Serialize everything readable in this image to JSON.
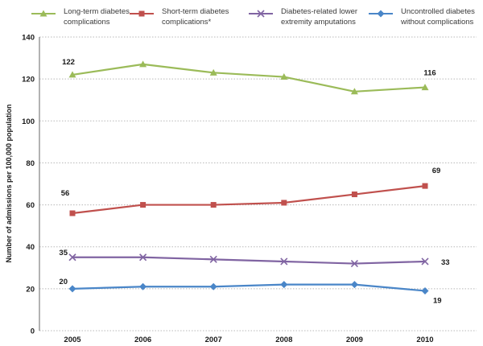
{
  "legend": {
    "items": [
      {
        "line1": "Long-term diabetes",
        "line2": "complications"
      },
      {
        "line1": "Short-term diabetes",
        "line2": "complications*"
      },
      {
        "line1": "Diabetes-related lower",
        "line2": "extremity amputations"
      },
      {
        "line1": "Uncontrolled diabetes",
        "line2": "without complications"
      }
    ]
  },
  "chart_data": {
    "type": "line",
    "title": "",
    "xlabel": "",
    "ylabel": "Number of admissions per 100,000 population",
    "categories": [
      "2005",
      "2006",
      "2007",
      "2008",
      "2009",
      "2010"
    ],
    "series": [
      {
        "name": "Long-term diabetes complications",
        "marker": "triangle",
        "color": "#9BBB59",
        "values": [
          122,
          127,
          123,
          121,
          114,
          116
        ],
        "first_label": "122",
        "last_label": "116"
      },
      {
        "name": "Short-term diabetes complications*",
        "marker": "square",
        "color": "#C0504D",
        "values": [
          56,
          60,
          60,
          61,
          65,
          69
        ],
        "first_label": "56",
        "last_label": "69"
      },
      {
        "name": "Diabetes-related lower extremity amputations",
        "marker": "x-cross",
        "color": "#8064A2",
        "values": [
          35,
          35,
          34,
          33,
          32,
          33
        ],
        "first_label": "35",
        "last_label": "33"
      },
      {
        "name": "Uncontrolled diabetes without complications",
        "marker": "diamond",
        "color": "#4A86C8",
        "values": [
          20,
          21,
          21,
          22,
          22,
          19
        ],
        "first_label": "20",
        "last_label": "19"
      }
    ],
    "ylim": [
      0,
      140
    ],
    "yticks": [
      0,
      20,
      40,
      60,
      80,
      100,
      120,
      140
    ],
    "grid": "horizontal-dotted",
    "gridline_color": "#B8B8B8",
    "axis_line_color": "#808080",
    "text_color": "#1a1a1a",
    "legend_position": "top"
  }
}
